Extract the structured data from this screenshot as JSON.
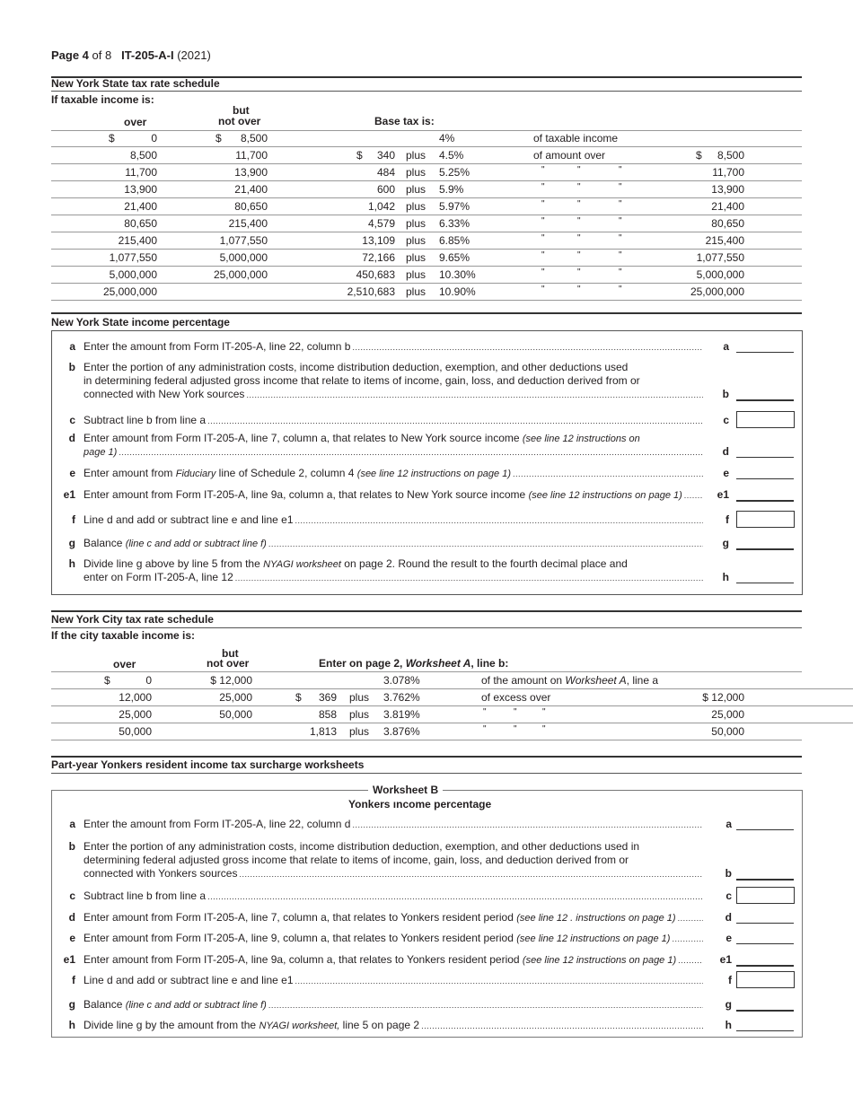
{
  "header": {
    "page": "Page 4",
    "of": "of 8",
    "form": "IT-205-A-I",
    "year": "(2021)"
  },
  "nys_schedule": {
    "title": "New York State tax rate schedule",
    "subtitle": "If taxable income is:",
    "col_but": "but",
    "col_over": "over",
    "col_not_over": "not over",
    "col_base": "Base tax is:",
    "rows": [
      {
        "over_sym": "$",
        "over": "0",
        "not_sym": "$",
        "not_over": "8,500",
        "base_sym": "",
        "base": "",
        "plus": "",
        "rate": "4%",
        "desc": "of taxable income",
        "ditto": false,
        "amt_sym": "",
        "amt": ""
      },
      {
        "over_sym": "",
        "over": "8,500",
        "not_sym": "",
        "not_over": "11,700",
        "base_sym": "$",
        "base": "340",
        "plus": "plus",
        "rate": "4.5%",
        "desc": "of amount over",
        "ditto": false,
        "amt_sym": "$",
        "amt": "8,500"
      },
      {
        "over_sym": "",
        "over": "11,700",
        "not_sym": "",
        "not_over": "13,900",
        "base_sym": "",
        "base": "484",
        "plus": "plus",
        "rate": "5.25%",
        "desc": "",
        "ditto": true,
        "amt_sym": "",
        "amt": "11,700"
      },
      {
        "over_sym": "",
        "over": "13,900",
        "not_sym": "",
        "not_over": "21,400",
        "base_sym": "",
        "base": "600",
        "plus": "plus",
        "rate": "5.9%",
        "desc": "",
        "ditto": true,
        "amt_sym": "",
        "amt": "13,900"
      },
      {
        "over_sym": "",
        "over": "21,400",
        "not_sym": "",
        "not_over": "80,650",
        "base_sym": "",
        "base": "1,042",
        "plus": "plus",
        "rate": "5.97%",
        "desc": "",
        "ditto": true,
        "amt_sym": "",
        "amt": "21,400"
      },
      {
        "over_sym": "",
        "over": "80,650",
        "not_sym": "",
        "not_over": "215,400",
        "base_sym": "",
        "base": "4,579",
        "plus": "plus",
        "rate": "6.33%",
        "desc": "",
        "ditto": true,
        "amt_sym": "",
        "amt": "80,650"
      },
      {
        "over_sym": "",
        "over": "215,400",
        "not_sym": "",
        "not_over": "1,077,550",
        "base_sym": "",
        "base": "13,109",
        "plus": "plus",
        "rate": "6.85%",
        "desc": "",
        "ditto": true,
        "amt_sym": "",
        "amt": "215,400"
      },
      {
        "over_sym": "",
        "over": "1,077,550",
        "not_sym": "",
        "not_over": "5,000,000",
        "base_sym": "",
        "base": "72,166",
        "plus": "plus",
        "rate": "9.65%",
        "desc": "",
        "ditto": true,
        "amt_sym": "",
        "amt": "1,077,550"
      },
      {
        "over_sym": "",
        "over": "5,000,000",
        "not_sym": "",
        "not_over": "25,000,000",
        "base_sym": "",
        "base": "450,683",
        "plus": "plus",
        "rate": "10.30%",
        "desc": "",
        "ditto": true,
        "amt_sym": "",
        "amt": "5,000,000"
      },
      {
        "over_sym": "",
        "over": "25,000,000",
        "not_sym": "",
        "not_over": "",
        "base_sym": "",
        "base": "2,510,683",
        "plus": "plus",
        "rate": "10.90%",
        "desc": "",
        "ditto": true,
        "amt_sym": "",
        "amt": "25,000,000"
      }
    ]
  },
  "ditto_mark": "\"",
  "nys_income": {
    "title": "New York State income percentage",
    "items": [
      {
        "letter": "a",
        "field": "line",
        "lines": [
          [
            {
              "t": "Enter the amount from Form IT-205-A, line 22, column b"
            }
          ]
        ]
      },
      {
        "letter": "b",
        "field": "thick",
        "lines": [
          [
            {
              "t": "Enter the portion of any administration costs, income distribution deduction, exemption, and other deductions used"
            }
          ],
          [
            {
              "t": "in determining federal adjusted gross income that relate to items of income, gain, loss, and deduction derived from or"
            }
          ],
          [
            {
              "t": "connected with New York sources"
            }
          ]
        ]
      },
      {
        "letter": "c",
        "field": "box",
        "lines": [
          [
            {
              "t": "Subtract line b from line a"
            }
          ]
        ]
      },
      {
        "letter": "d",
        "field": "line",
        "lines": [
          [
            {
              "t": "Enter amount from Form IT-205-A, line 7, column a, that relates to New York source income "
            },
            {
              "t": "(see line 12 instructions on",
              "i": true
            }
          ],
          [
            {
              "t": "page 1)",
              "i": true
            }
          ]
        ]
      },
      {
        "letter": "e",
        "field": "line",
        "lines": [
          [
            {
              "t": "Enter amount from "
            },
            {
              "t": "Fiduciary",
              "i": true
            },
            {
              "t": " line of Schedule 2, column 4 "
            },
            {
              "t": "(see line 12 instructions on page 1)",
              "i": true
            }
          ]
        ]
      },
      {
        "letter": "e1",
        "field": "thick",
        "lines": [
          [
            {
              "t": "Enter amount from Form IT-205-A, line 9a, column a, that relates to New York source income "
            },
            {
              "t": "(see line 12 instructions on page 1)",
              "i": true
            }
          ]
        ]
      },
      {
        "letter": "f",
        "field": "box",
        "lines": [
          [
            {
              "t": "Line d and add or subtract line e and line e1"
            }
          ]
        ]
      },
      {
        "letter": "g",
        "field": "thick",
        "lines": [
          [
            {
              "t": "Balance "
            },
            {
              "t": "(line c and add or subtract line f)",
              "i": true
            }
          ]
        ]
      },
      {
        "letter": "h",
        "field": "line",
        "lines": [
          [
            {
              "t": "Divide line g above by line 5 from the "
            },
            {
              "t": "NYAGI worksheet",
              "i": true
            },
            {
              "t": " on page 2. Round the result to the fourth decimal place and"
            }
          ],
          [
            {
              "t": "enter on Form IT-205-A, line 12"
            }
          ]
        ]
      }
    ]
  },
  "nyc_schedule": {
    "title": "New York City tax rate schedule",
    "subtitle": "If the city taxable income is:",
    "col_but": "but",
    "col_over": "over",
    "col_not_over": "not over",
    "col_enter_pre": "Enter on page 2, ",
    "col_enter_em": "Worksheet A",
    "col_enter_post": ", line b:",
    "rows": [
      {
        "over_sym": "$",
        "over": "0",
        "not_over": "$ 12,000",
        "base_sym": "",
        "base": "",
        "plus": "",
        "rate": "3.078%",
        "desc_pre": "of the amount on ",
        "desc_em": "Worksheet A",
        "desc_post": ", line a",
        "ditto": false,
        "amt": ""
      },
      {
        "over_sym": "",
        "over": "12,000",
        "not_over": "25,000",
        "base_sym": "$",
        "base": "369",
        "plus": "plus",
        "rate": "3.762%",
        "desc_pre": "of excess over",
        "desc_em": "",
        "desc_post": "",
        "ditto": false,
        "amt": "$ 12,000"
      },
      {
        "over_sym": "",
        "over": "25,000",
        "not_over": "50,000",
        "base_sym": "",
        "base": "858",
        "plus": "plus",
        "rate": "3.819%",
        "desc_pre": "",
        "desc_em": "",
        "desc_post": "",
        "ditto": true,
        "amt": "25,000"
      },
      {
        "over_sym": "",
        "over": "50,000",
        "not_over": "",
        "base_sym": "",
        "base": "1,813",
        "plus": "plus",
        "rate": "3.876%",
        "desc_pre": "",
        "desc_em": "",
        "desc_post": "",
        "ditto": true,
        "amt": "50,000"
      }
    ]
  },
  "yonkers": {
    "title": "Part-year Yonkers resident income tax surcharge worksheets",
    "worksheet": "Worksheet B",
    "subtitle": "Yonkers ıncome percentage",
    "items": [
      {
        "letter": "a",
        "field": "line",
        "lines": [
          [
            {
              "t": "Enter the amount from Form IT-205-A, line 22, column d"
            }
          ]
        ]
      },
      {
        "letter": "b",
        "field": "thick",
        "lines": [
          [
            {
              "t": "Enter the portion of any administration costs, income distribution deduction, exemption, and other deductions used in"
            }
          ],
          [
            {
              "t": "determining federal adjusted gross income that relate to items of income, gain, loss, and deduction derived from or"
            }
          ],
          [
            {
              "t": "connected with Yonkers sources"
            }
          ]
        ]
      },
      {
        "letter": "c",
        "field": "box",
        "lines": [
          [
            {
              "t": "Subtract line b from line a "
            }
          ]
        ]
      },
      {
        "letter": "d",
        "field": "line",
        "lines": [
          [
            {
              "t": "Enter amount from Form IT-205-A, line 7, column a, that relates to Yonkers resident period "
            },
            {
              "t": "(see line 12  . instructions on page 1)",
              "i": true
            }
          ]
        ]
      },
      {
        "letter": "e",
        "field": "line",
        "lines": [
          [
            {
              "t": "Enter amount from Form IT-205-A, line 9, column a, that relates to Yonkers resident period "
            },
            {
              "t": "(see line 12 instructions on page 1)",
              "i": true
            }
          ]
        ]
      },
      {
        "letter": "e1",
        "field": "thick",
        "lines": [
          [
            {
              "t": "Enter amount from Form IT-205-A, line 9a, column a, that relates to Yonkers resident period "
            },
            {
              "t": "(see line 12 instructions on page 1)",
              "i": true
            }
          ]
        ]
      },
      {
        "letter": "f",
        "field": "box",
        "lines": [
          [
            {
              "t": "Line d and add or subtract line e and line e1 "
            }
          ]
        ]
      },
      {
        "letter": "g",
        "field": "thick",
        "lines": [
          [
            {
              "t": "Balance "
            },
            {
              "t": "(line c and add or subtract line f)",
              "i": true
            }
          ]
        ]
      },
      {
        "letter": "h",
        "field": "line",
        "lines": [
          [
            {
              "t": "Divide line g by the amount from the "
            },
            {
              "t": "NYAGI worksheet,",
              "i": true
            },
            {
              "t": " line 5 on page 2"
            }
          ]
        ]
      }
    ]
  }
}
